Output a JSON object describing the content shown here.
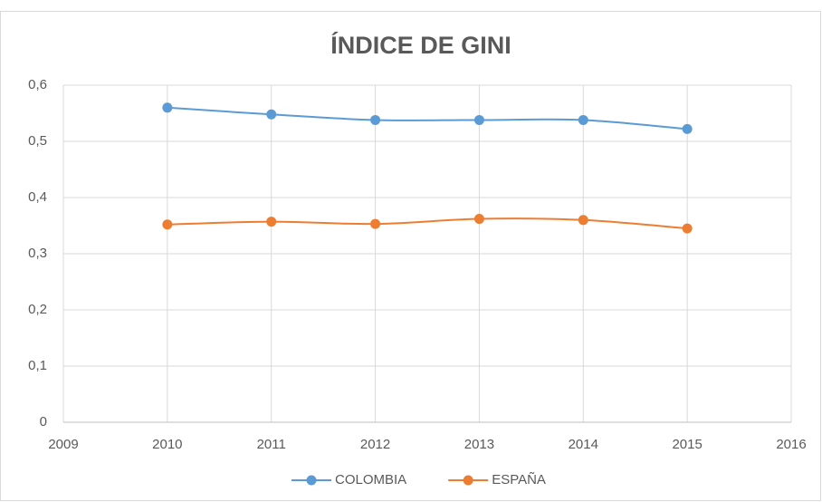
{
  "chart_data": {
    "type": "line",
    "title": "ÍNDICE DE GINI",
    "x": [
      2010,
      2011,
      2012,
      2013,
      2014,
      2015
    ],
    "series": [
      {
        "name": "COLOMBIA",
        "color": "#5b9bd5",
        "values": [
          0.56,
          0.548,
          0.538,
          0.538,
          0.538,
          0.522
        ]
      },
      {
        "name": "ESPAÑA",
        "color": "#ed7d31",
        "values": [
          0.352,
          0.357,
          0.353,
          0.362,
          0.36,
          0.345
        ]
      }
    ],
    "xlim": [
      2009,
      2016
    ],
    "xticks": [
      2009,
      2010,
      2011,
      2012,
      2013,
      2014,
      2015,
      2016
    ],
    "ylim": [
      0,
      0.6
    ],
    "yticks": [
      0,
      {
        "value": 0.1,
        "label": "0,1"
      },
      {
        "value": 0.2,
        "label": "0,2"
      },
      {
        "value": 0.3,
        "label": "0,3"
      },
      {
        "value": 0.4,
        "label": "0,4"
      },
      {
        "value": 0.5,
        "label": "0,5"
      },
      {
        "value": 0.6,
        "label": "0,6"
      }
    ],
    "grid": true,
    "smooth": true,
    "legend": "bottom"
  }
}
